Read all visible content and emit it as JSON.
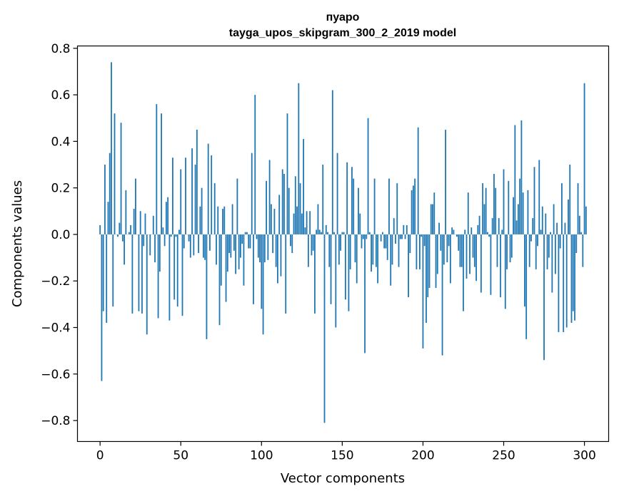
{
  "chart_data": {
    "type": "bar",
    "title": "пуаро",
    "subtitle": "tayga_upos_skipgram_300_2_2019 model",
    "xlabel": "Vector components",
    "ylabel": "Components values",
    "xlim": [
      -14,
      315
    ],
    "ylim": [
      -0.89,
      0.81
    ],
    "xticks": [
      0,
      50,
      100,
      150,
      200,
      250,
      300
    ],
    "xtick_labels": [
      "0",
      "50",
      "100",
      "150",
      "200",
      "250",
      "300"
    ],
    "yticks": [
      0.8,
      0.6,
      0.4,
      0.2,
      0.0,
      -0.2,
      -0.4,
      -0.6,
      -0.8
    ],
    "ytick_labels": [
      "0.8",
      "0.6",
      "0.4",
      "0.2",
      "0.0",
      "−0.2",
      "−0.4",
      "−0.6",
      "−0.8"
    ],
    "bar_color": "#1f77b4",
    "grid": false,
    "values": [
      0.04,
      -0.63,
      -0.33,
      0.3,
      -0.38,
      0.14,
      0.35,
      0.74,
      -0.31,
      0.52,
      0.0,
      -0.01,
      0.05,
      0.48,
      -0.03,
      -0.13,
      0.19,
      0.0,
      0.01,
      0.04,
      -0.34,
      0.11,
      0.24,
      0.0,
      -0.33,
      0.1,
      -0.34,
      -0.05,
      0.09,
      -0.43,
      0.0,
      -0.09,
      0.0,
      0.08,
      -0.12,
      0.56,
      -0.36,
      -0.16,
      0.52,
      0.03,
      -0.05,
      0.14,
      0.16,
      -0.37,
      -0.01,
      0.33,
      -0.28,
      -0.01,
      -0.31,
      0.02,
      0.28,
      -0.35,
      -0.06,
      0.33,
      0.0,
      -0.03,
      -0.1,
      0.37,
      -0.09,
      0.3,
      0.45,
      -0.08,
      0.12,
      0.2,
      -0.1,
      -0.11,
      -0.45,
      0.39,
      -0.07,
      0.34,
      0.0,
      0.22,
      -0.13,
      0.12,
      -0.39,
      -0.22,
      0.11,
      0.12,
      -0.29,
      -0.16,
      -0.08,
      -0.1,
      0.13,
      -0.07,
      -0.17,
      0.24,
      -0.15,
      -0.1,
      -0.04,
      -0.22,
      0.01,
      0.01,
      -0.06,
      -0.06,
      0.35,
      -0.3,
      0.6,
      -0.02,
      -0.1,
      -0.12,
      -0.32,
      -0.43,
      -0.12,
      0.23,
      -0.11,
      0.32,
      0.13,
      -0.08,
      0.11,
      -0.14,
      -0.21,
      0.17,
      -0.18,
      0.28,
      0.26,
      -0.34,
      0.52,
      0.2,
      -0.05,
      -0.08,
      0.09,
      0.25,
      0.12,
      0.65,
      0.22,
      0.09,
      0.41,
      0.03,
      0.1,
      -0.14,
      0.1,
      -0.09,
      -0.07,
      -0.34,
      0.02,
      0.13,
      0.02,
      0.01,
      0.3,
      -0.81,
      0.04,
      0.01,
      -0.14,
      -0.3,
      0.62,
      0.01,
      -0.4,
      0.35,
      -0.13,
      -0.07,
      0.01,
      0.01,
      -0.28,
      0.31,
      -0.33,
      -0.15,
      0.29,
      0.24,
      -0.12,
      -0.21,
      0.2,
      0.09,
      -0.06,
      -0.02,
      -0.51,
      -0.02,
      0.5,
      0.01,
      -0.16,
      -0.13,
      0.24,
      -0.14,
      -0.21,
      0.0,
      -0.03,
      0.01,
      -0.06,
      -0.06,
      -0.11,
      0.24,
      -0.22,
      -0.13,
      0.07,
      -0.04,
      0.22,
      -0.14,
      -0.02,
      -0.02,
      0.04,
      -0.02,
      0.04,
      -0.27,
      -0.08,
      0.19,
      0.21,
      0.24,
      -0.15,
      0.46,
      -0.15,
      -0.01,
      -0.49,
      -0.05,
      -0.38,
      -0.27,
      -0.23,
      0.13,
      0.13,
      0.18,
      -0.23,
      -0.17,
      0.05,
      -0.07,
      -0.52,
      -0.13,
      0.45,
      -0.12,
      -0.05,
      -0.21,
      0.03,
      0.02,
      0.0,
      -0.01,
      -0.07,
      -0.14,
      -0.14,
      -0.33,
      0.02,
      -0.19,
      0.18,
      -0.17,
      0.03,
      -0.1,
      -0.14,
      -0.2,
      0.04,
      0.08,
      -0.25,
      0.22,
      0.13,
      0.2,
      0.01,
      -0.01,
      -0.26,
      0.07,
      0.26,
      0.2,
      -0.14,
      0.07,
      -0.27,
      0.02,
      0.28,
      -0.32,
      -0.15,
      0.23,
      -0.12,
      -0.1,
      0.16,
      0.47,
      0.06,
      0.13,
      0.24,
      0.49,
      0.18,
      -0.31,
      -0.45,
      0.19,
      -0.14,
      -0.03,
      0.07,
      0.29,
      -0.15,
      -0.05,
      0.32,
      0.02,
      0.12,
      -0.54,
      0.09,
      -0.15,
      -0.1,
      0.01,
      -0.25,
      0.13,
      -0.17,
      0.05,
      -0.42,
      -0.06,
      0.22,
      -0.42,
      0.05,
      -0.4,
      0.15,
      0.3,
      -0.38,
      -0.33,
      -0.37,
      -0.08,
      0.22,
      0.08,
      0.01,
      -0.14,
      0.65,
      0.12
    ]
  }
}
